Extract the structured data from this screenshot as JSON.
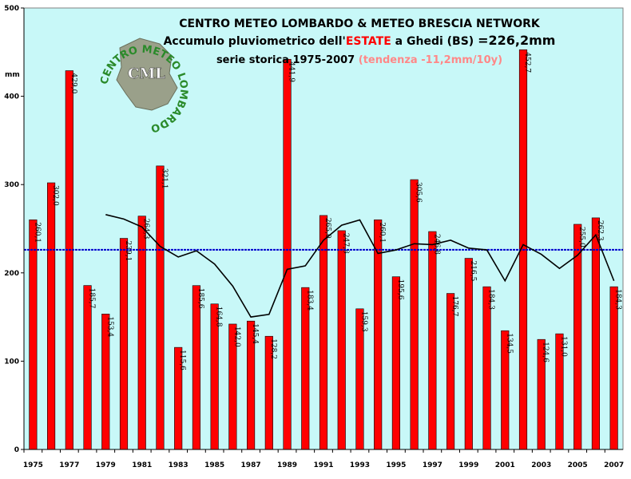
{
  "chart_data": {
    "type": "bar",
    "title": "CENTRO METEO LOMBARDO & METEO BRESCIA NETWORK",
    "subtitle_prefix": "Accumulo pluviometrico dell'",
    "subtitle_highlight": "ESTATE",
    "subtitle_mid": " a Ghedi (BS) ",
    "subtitle_value": "=226,2mm",
    "series_line_prefix": "serie storica 1975-2007 ",
    "trend_text": "(tendenza -11,2mm/10y)",
    "ylabel": "mm",
    "ylim": [
      0,
      500
    ],
    "yticks": [
      "0",
      "100",
      "200",
      "300",
      "400",
      "500"
    ],
    "xtick_labels": [
      "1975",
      "1977",
      "1979",
      "1981",
      "1983",
      "1985",
      "1987",
      "1989",
      "1991",
      "1993",
      "1995",
      "1997",
      "1999",
      "2001",
      "2003",
      "2005",
      "2007"
    ],
    "categories": [
      "1975",
      "1976",
      "1977",
      "1978",
      "1979",
      "1980",
      "1981",
      "1982",
      "1983",
      "1984",
      "1985",
      "1986",
      "1987",
      "1988",
      "1989",
      "1990",
      "1991",
      "1992",
      "1993",
      "1994",
      "1995",
      "1996",
      "1997",
      "1998",
      "1999",
      "2000",
      "2001",
      "2002",
      "2003",
      "2004",
      "2005",
      "2006",
      "2007"
    ],
    "values": [
      260.1,
      302.0,
      429.0,
      185.7,
      153.4,
      239.1,
      264.3,
      321.1,
      115.6,
      185.6,
      164.8,
      142.0,
      145.4,
      128.2,
      441.9,
      183.4,
      265.0,
      247.8,
      159.3,
      260.1,
      195.6,
      305.6,
      246.8,
      176.7,
      216.5,
      184.3,
      134.5,
      452.7,
      124.6,
      131.0,
      255.0,
      262.3,
      184.3
    ],
    "data_labels": [
      "260,1",
      "302,0",
      "429,0",
      "185,7",
      "153,4",
      "239,1",
      "264,3",
      "321,1",
      "115,6",
      "185,6",
      "164,8",
      "142,0",
      "145,4",
      "128,2",
      "441,9",
      "183,4",
      "265,0",
      "247,8",
      "159,3",
      "260,1",
      "195,6",
      "305,6",
      "246,8",
      "176,7",
      "216,5",
      "184,3",
      "134,5",
      "452,7",
      "124,6",
      "131,0",
      "255,0",
      "262,3",
      "184,3"
    ],
    "mean": 226.2,
    "moving_average": {
      "x": [
        "1979",
        "1980",
        "1981",
        "1982",
        "1983",
        "1984",
        "1985",
        "1986",
        "1987",
        "1988",
        "1989",
        "1990",
        "1991",
        "1992",
        "1993",
        "1994",
        "1995",
        "1996",
        "1997",
        "1998",
        "1999",
        "2000",
        "2001",
        "2002",
        "2003",
        "2004",
        "2005",
        "2006",
        "2007"
      ],
      "values": [
        266,
        261,
        252,
        230,
        218,
        225,
        210,
        185,
        150,
        153,
        204,
        208,
        237,
        254,
        260,
        222,
        226,
        233,
        232,
        237,
        228,
        226,
        191,
        232,
        221,
        205,
        220,
        243,
        191
      ]
    },
    "colors": {
      "bar": "#ff0000",
      "bar_border": "#000000",
      "plot_bg": "#c8f8f8",
      "mean_line": "#0000cc",
      "moving_avg": "#000000",
      "highlight": "#ff0000",
      "trend": "#ff8888"
    },
    "logo": {
      "ring_text": "CENTRO METEO LOMBARDO",
      "center": "CML"
    }
  }
}
